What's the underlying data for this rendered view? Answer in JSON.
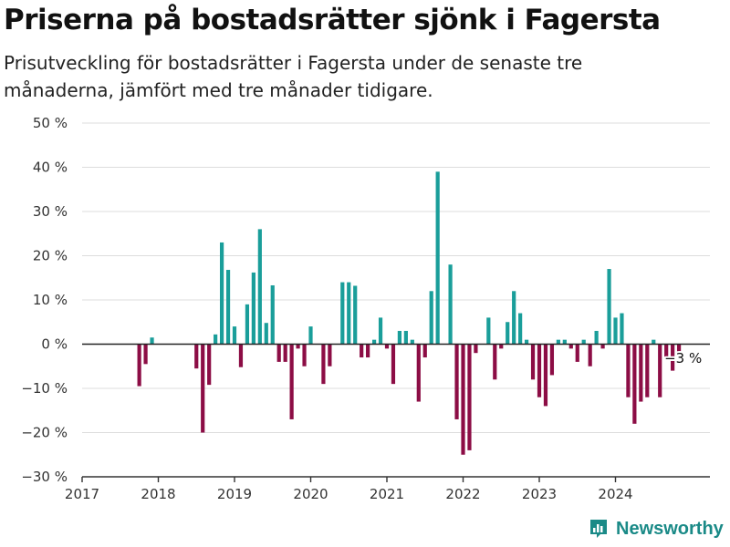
{
  "title": "Priserna på bostadsrätter sjönk i Fagersta",
  "subtitle": "Prisutveckling för bostadsrätter i Fagersta under de senaste tre månaderna, jämfört med tre månader tidigare.",
  "brand": "Newsworthy",
  "colors": {
    "positive": "#1a9e9a",
    "negative": "#8c0d45",
    "zero_line": "#222222",
    "grid": "#dddddd",
    "brand": "#1a8a87"
  },
  "chart_data": {
    "type": "bar",
    "x_unit": "month",
    "ylim": [
      -30,
      50
    ],
    "yticks": [
      50,
      40,
      30,
      20,
      10,
      0,
      -10,
      -20,
      -30
    ],
    "ytick_labels": [
      "50 %",
      "40 %",
      "30 %",
      "20 %",
      "10 %",
      "0 %",
      "−10 %",
      "−20 %",
      "−30 %"
    ],
    "xticks": [
      "2017",
      "2018",
      "2019",
      "2020",
      "2021",
      "2022",
      "2023",
      "2024"
    ],
    "grid": true,
    "annotation": {
      "label": "−3 %",
      "x": "2024-11",
      "y": -3
    },
    "series": [
      {
        "values": [
          {
            "x": "2017-10",
            "y": -9.5
          },
          {
            "x": "2017-11",
            "y": -4.5
          },
          {
            "x": "2017-12",
            "y": 1.5
          },
          {
            "x": "2018-07",
            "y": -5.5
          },
          {
            "x": "2018-08",
            "y": -20
          },
          {
            "x": "2018-09",
            "y": -9.2
          },
          {
            "x": "2018-10",
            "y": 2.2
          },
          {
            "x": "2018-11",
            "y": 23
          },
          {
            "x": "2018-12",
            "y": 16.8
          },
          {
            "x": "2019-01",
            "y": 4
          },
          {
            "x": "2019-02",
            "y": -5.2
          },
          {
            "x": "2019-03",
            "y": 9
          },
          {
            "x": "2019-04",
            "y": 16.2
          },
          {
            "x": "2019-05",
            "y": 26
          },
          {
            "x": "2019-06",
            "y": 4.8
          },
          {
            "x": "2019-07",
            "y": 13.3
          },
          {
            "x": "2019-08",
            "y": -4
          },
          {
            "x": "2019-09",
            "y": -4
          },
          {
            "x": "2019-10",
            "y": -17
          },
          {
            "x": "2019-11",
            "y": -1
          },
          {
            "x": "2019-12",
            "y": -5
          },
          {
            "x": "2020-01",
            "y": 4
          },
          {
            "x": "2020-03",
            "y": -9
          },
          {
            "x": "2020-04",
            "y": -5
          },
          {
            "x": "2020-06",
            "y": 14
          },
          {
            "x": "2020-07",
            "y": 14
          },
          {
            "x": "2020-08",
            "y": 13.2
          },
          {
            "x": "2020-09",
            "y": -3
          },
          {
            "x": "2020-10",
            "y": -3
          },
          {
            "x": "2020-11",
            "y": 1
          },
          {
            "x": "2020-12",
            "y": 6
          },
          {
            "x": "2021-01",
            "y": -1
          },
          {
            "x": "2021-02",
            "y": -9
          },
          {
            "x": "2021-03",
            "y": 3
          },
          {
            "x": "2021-04",
            "y": 3
          },
          {
            "x": "2021-05",
            "y": 1
          },
          {
            "x": "2021-06",
            "y": -13
          },
          {
            "x": "2021-07",
            "y": -3
          },
          {
            "x": "2021-08",
            "y": 12
          },
          {
            "x": "2021-09",
            "y": 39
          },
          {
            "x": "2021-11",
            "y": 18
          },
          {
            "x": "2021-12",
            "y": -17
          },
          {
            "x": "2022-01",
            "y": -25
          },
          {
            "x": "2022-02",
            "y": -24
          },
          {
            "x": "2022-03",
            "y": -2
          },
          {
            "x": "2022-05",
            "y": 6
          },
          {
            "x": "2022-06",
            "y": -8
          },
          {
            "x": "2022-07",
            "y": -1
          },
          {
            "x": "2022-08",
            "y": 5
          },
          {
            "x": "2022-09",
            "y": 12
          },
          {
            "x": "2022-10",
            "y": 7
          },
          {
            "x": "2022-11",
            "y": 1
          },
          {
            "x": "2022-12",
            "y": -8
          },
          {
            "x": "2023-01",
            "y": -12
          },
          {
            "x": "2023-02",
            "y": -14
          },
          {
            "x": "2023-03",
            "y": -7
          },
          {
            "x": "2023-04",
            "y": 1
          },
          {
            "x": "2023-05",
            "y": 1
          },
          {
            "x": "2023-06",
            "y": -1
          },
          {
            "x": "2023-07",
            "y": -4
          },
          {
            "x": "2023-08",
            "y": 1
          },
          {
            "x": "2023-09",
            "y": -5
          },
          {
            "x": "2023-10",
            "y": 3
          },
          {
            "x": "2023-11",
            "y": -1
          },
          {
            "x": "2023-12",
            "y": 17
          },
          {
            "x": "2024-01",
            "y": 6
          },
          {
            "x": "2024-02",
            "y": 7
          },
          {
            "x": "2024-03",
            "y": -12
          },
          {
            "x": "2024-04",
            "y": -18
          },
          {
            "x": "2024-05",
            "y": -13
          },
          {
            "x": "2024-06",
            "y": -12
          },
          {
            "x": "2024-07",
            "y": 1
          },
          {
            "x": "2024-08",
            "y": -12
          },
          {
            "x": "2024-09",
            "y": -3
          },
          {
            "x": "2024-10",
            "y": -6
          },
          {
            "x": "2024-11",
            "y": -3
          }
        ]
      }
    ]
  }
}
